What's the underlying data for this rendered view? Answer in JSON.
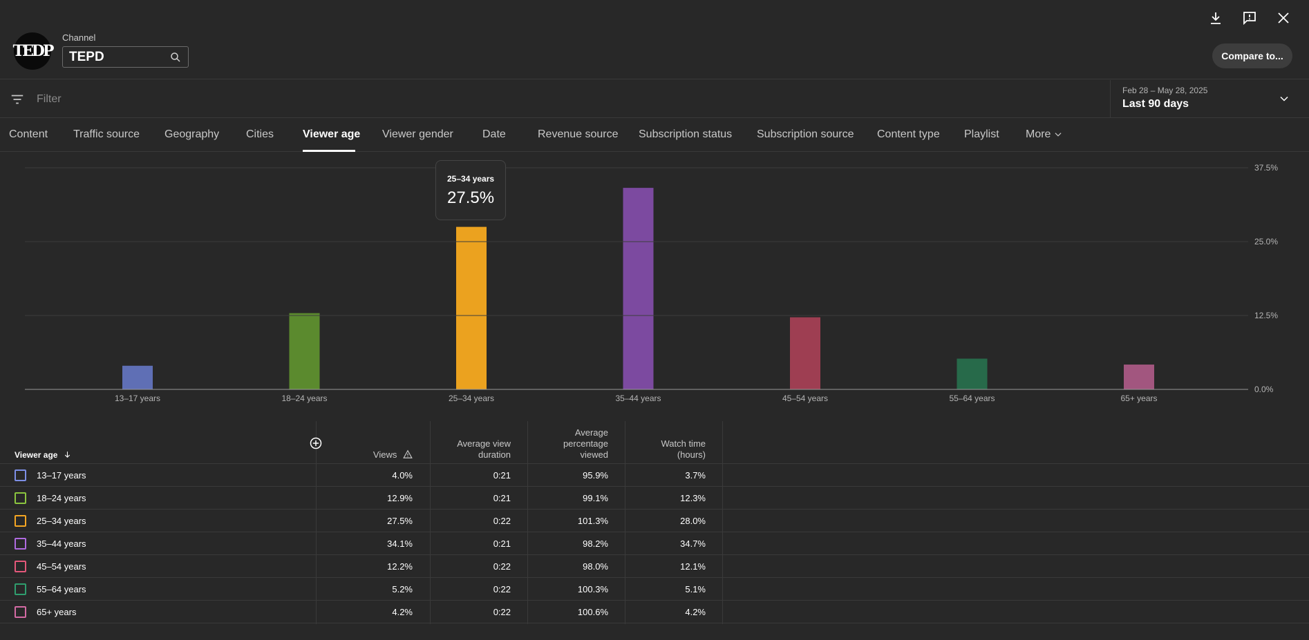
{
  "header": {
    "logo_text": "TEDP",
    "channel_label": "Channel",
    "channel_value": "TEPD",
    "compare_label": "Compare to..."
  },
  "filter": {
    "placeholder": "Filter",
    "date_range": "Feb 28 – May 28, 2025",
    "date_preset": "Last 90 days"
  },
  "tabs": [
    "Content",
    "Traffic source",
    "Geography",
    "Cities",
    "Viewer age",
    "Viewer gender",
    "Date",
    "Revenue source",
    "Subscription status",
    "Subscription source",
    "Content type",
    "Playlist",
    "More"
  ],
  "active_tab": "Viewer age",
  "tooltip": {
    "label": "25–34 years",
    "value": "27.5%"
  },
  "chart_data": {
    "type": "bar",
    "categories": [
      "13–17 years",
      "18–24 years",
      "25–34 years",
      "35–44 years",
      "45–54 years",
      "55–64 years",
      "65+ years"
    ],
    "values": [
      4.0,
      12.9,
      27.5,
      34.1,
      12.2,
      5.2,
      4.2
    ],
    "colors": [
      "#5f6fb5",
      "#5b8a2e",
      "#eba21f",
      "#7c4aa0",
      "#9e3e52",
      "#276a4a",
      "#a2567f"
    ],
    "y_ticks": [
      "0.0%",
      "12.5%",
      "25.0%",
      "37.5%"
    ],
    "ylim": [
      0,
      37.5
    ],
    "grid": true
  },
  "table": {
    "headers": {
      "dimension": "Viewer age",
      "views": "Views",
      "avg_view_duration": [
        "Average view",
        "duration"
      ],
      "avg_pct_viewed": [
        "Average",
        "percentage",
        "viewed"
      ],
      "watch_time": [
        "Watch time",
        "(hours)"
      ]
    },
    "rows": [
      {
        "label": "13–17 years",
        "views": "4.0%",
        "avg_view_duration": "0:21",
        "avg_pct_viewed": "95.9%",
        "watch_time": "3.7%",
        "color": "#7d8fe6"
      },
      {
        "label": "18–24 years",
        "views": "12.9%",
        "avg_view_duration": "0:21",
        "avg_pct_viewed": "99.1%",
        "watch_time": "12.3%",
        "color": "#8bc53f"
      },
      {
        "label": "25–34 years",
        "views": "27.5%",
        "avg_view_duration": "0:22",
        "avg_pct_viewed": "101.3%",
        "watch_time": "28.0%",
        "color": "#f5a623"
      },
      {
        "label": "35–44 years",
        "views": "34.1%",
        "avg_view_duration": "0:21",
        "avg_pct_viewed": "98.2%",
        "watch_time": "34.7%",
        "color": "#b06be0"
      },
      {
        "label": "45–54 years",
        "views": "12.2%",
        "avg_view_duration": "0:22",
        "avg_pct_viewed": "98.0%",
        "watch_time": "12.1%",
        "color": "#e4587a"
      },
      {
        "label": "55–64 years",
        "views": "5.2%",
        "avg_view_duration": "0:22",
        "avg_pct_viewed": "100.3%",
        "watch_time": "5.1%",
        "color": "#2f9e6e"
      },
      {
        "label": "65+ years",
        "views": "4.2%",
        "avg_view_duration": "0:22",
        "avg_pct_viewed": "100.6%",
        "watch_time": "4.2%",
        "color": "#d46ba4"
      }
    ]
  }
}
